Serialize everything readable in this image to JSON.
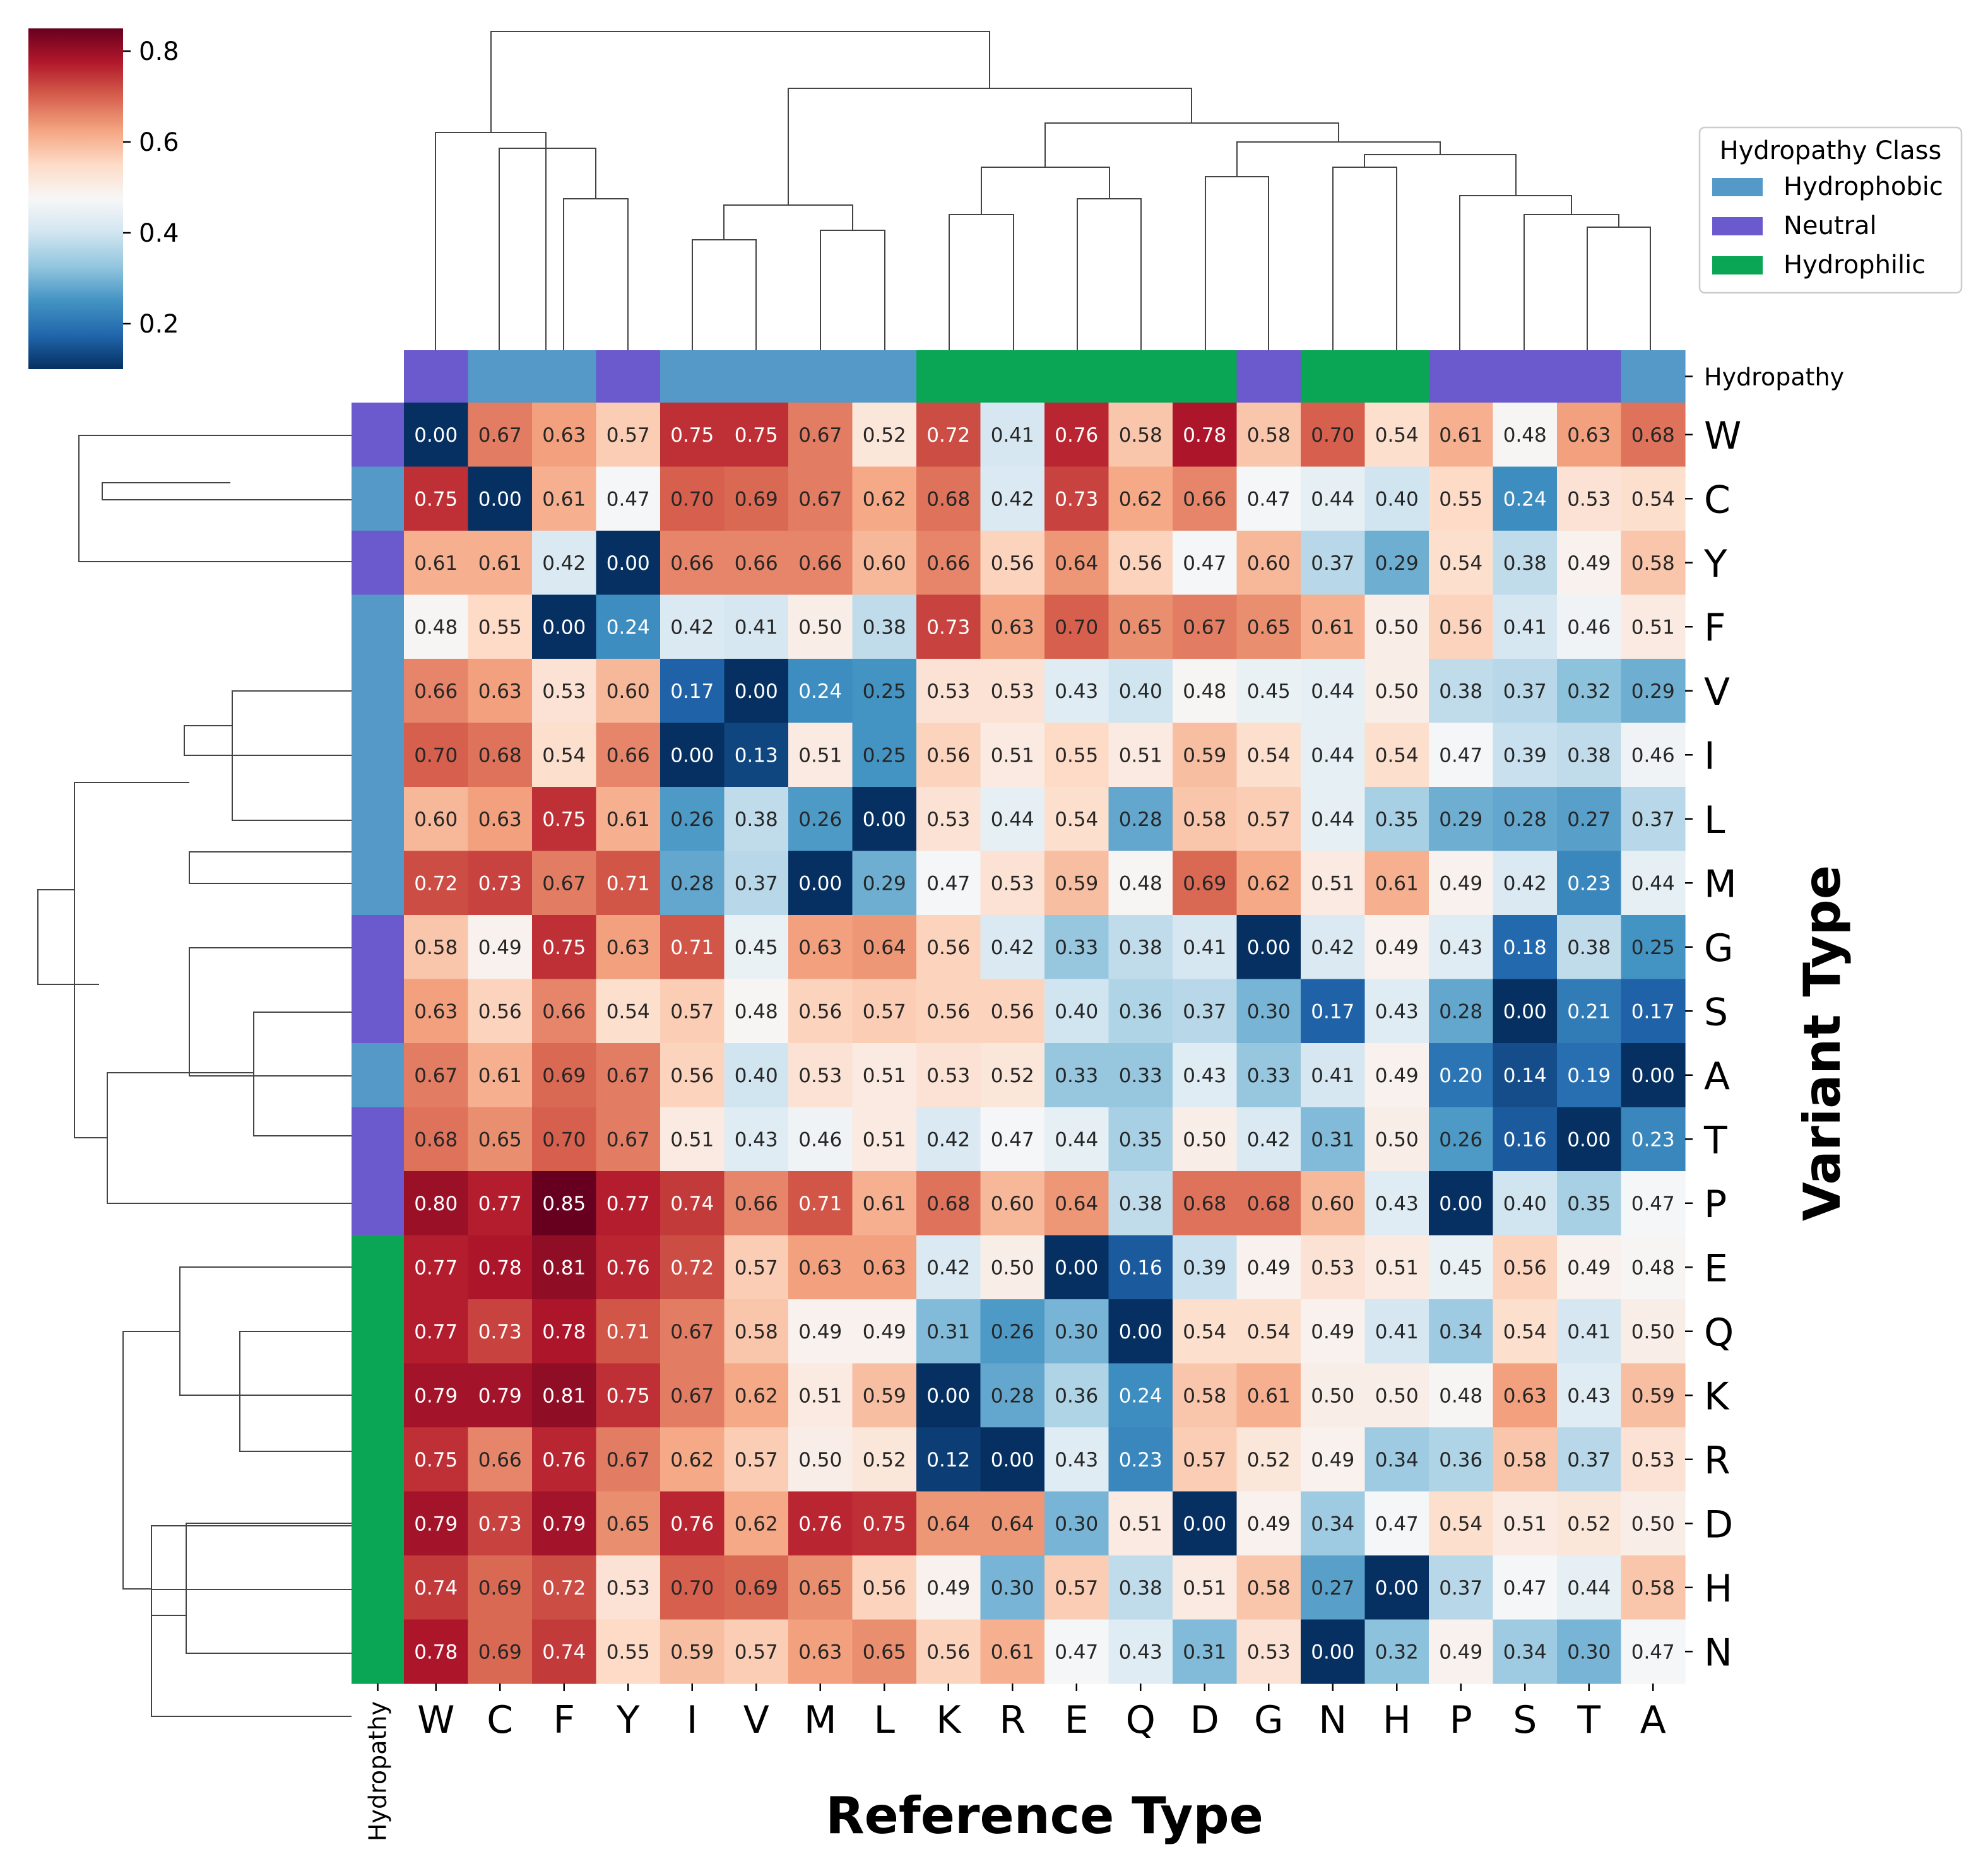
{
  "chart_data": {
    "type": "heatmap",
    "title": "",
    "xlabel": "Reference Type",
    "ylabel": "Variant Type",
    "columns": [
      "W",
      "C",
      "F",
      "Y",
      "I",
      "V",
      "M",
      "L",
      "K",
      "R",
      "E",
      "Q",
      "D",
      "G",
      "N",
      "H",
      "P",
      "S",
      "T",
      "A"
    ],
    "rows": [
      "W",
      "C",
      "Y",
      "F",
      "V",
      "I",
      "L",
      "M",
      "G",
      "S",
      "A",
      "T",
      "P",
      "E",
      "Q",
      "K",
      "R",
      "D",
      "H",
      "N"
    ],
    "values": [
      [
        0.0,
        0.67,
        0.63,
        0.57,
        0.75,
        0.75,
        0.67,
        0.52,
        0.72,
        0.41,
        0.76,
        0.58,
        0.78,
        0.58,
        0.7,
        0.54,
        0.61,
        0.48,
        0.63,
        0.68
      ],
      [
        0.75,
        0.0,
        0.61,
        0.47,
        0.7,
        0.69,
        0.67,
        0.62,
        0.68,
        0.42,
        0.73,
        0.62,
        0.66,
        0.47,
        0.44,
        0.4,
        0.55,
        0.24,
        0.53,
        0.54
      ],
      [
        0.61,
        0.61,
        0.42,
        0.0,
        0.66,
        0.66,
        0.66,
        0.6,
        0.66,
        0.56,
        0.64,
        0.56,
        0.47,
        0.6,
        0.37,
        0.29,
        0.54,
        0.38,
        0.49,
        0.58
      ],
      [
        0.48,
        0.55,
        0.0,
        0.24,
        0.42,
        0.41,
        0.5,
        0.38,
        0.73,
        0.63,
        0.7,
        0.65,
        0.67,
        0.65,
        0.61,
        0.5,
        0.56,
        0.41,
        0.46,
        0.51
      ],
      [
        0.66,
        0.63,
        0.53,
        0.6,
        0.17,
        0.0,
        0.24,
        0.25,
        0.53,
        0.53,
        0.43,
        0.4,
        0.48,
        0.45,
        0.44,
        0.5,
        0.38,
        0.37,
        0.32,
        0.29
      ],
      [
        0.7,
        0.68,
        0.54,
        0.66,
        0.0,
        0.13,
        0.51,
        0.25,
        0.56,
        0.51,
        0.55,
        0.51,
        0.59,
        0.54,
        0.44,
        0.54,
        0.47,
        0.39,
        0.38,
        0.46
      ],
      [
        0.6,
        0.63,
        0.75,
        0.61,
        0.26,
        0.38,
        0.26,
        0.0,
        0.53,
        0.44,
        0.54,
        0.28,
        0.58,
        0.57,
        0.44,
        0.35,
        0.29,
        0.28,
        0.27,
        0.37
      ],
      [
        0.72,
        0.73,
        0.67,
        0.71,
        0.28,
        0.37,
        0.0,
        0.29,
        0.47,
        0.53,
        0.59,
        0.48,
        0.69,
        0.62,
        0.51,
        0.61,
        0.49,
        0.42,
        0.23,
        0.44
      ],
      [
        0.58,
        0.49,
        0.75,
        0.63,
        0.71,
        0.45,
        0.63,
        0.64,
        0.56,
        0.42,
        0.33,
        0.38,
        0.41,
        0.0,
        0.42,
        0.49,
        0.43,
        0.18,
        0.38,
        0.25
      ],
      [
        0.63,
        0.56,
        0.66,
        0.54,
        0.57,
        0.48,
        0.56,
        0.57,
        0.56,
        0.56,
        0.4,
        0.36,
        0.37,
        0.3,
        0.17,
        0.43,
        0.28,
        0.0,
        0.21,
        0.17
      ],
      [
        0.67,
        0.61,
        0.69,
        0.67,
        0.56,
        0.4,
        0.53,
        0.51,
        0.53,
        0.52,
        0.33,
        0.33,
        0.43,
        0.33,
        0.41,
        0.49,
        0.2,
        0.14,
        0.19,
        0.0
      ],
      [
        0.68,
        0.65,
        0.7,
        0.67,
        0.51,
        0.43,
        0.46,
        0.51,
        0.42,
        0.47,
        0.44,
        0.35,
        0.5,
        0.42,
        0.31,
        0.5,
        0.26,
        0.16,
        0.0,
        0.23
      ],
      [
        0.8,
        0.77,
        0.85,
        0.77,
        0.74,
        0.66,
        0.71,
        0.61,
        0.68,
        0.6,
        0.64,
        0.38,
        0.68,
        0.68,
        0.6,
        0.43,
        0.0,
        0.4,
        0.35,
        0.47
      ],
      [
        0.77,
        0.78,
        0.81,
        0.76,
        0.72,
        0.57,
        0.63,
        0.63,
        0.42,
        0.5,
        0.0,
        0.16,
        0.39,
        0.49,
        0.53,
        0.51,
        0.45,
        0.56,
        0.49,
        0.48
      ],
      [
        0.77,
        0.73,
        0.78,
        0.71,
        0.67,
        0.58,
        0.49,
        0.49,
        0.31,
        0.26,
        0.3,
        0.0,
        0.54,
        0.54,
        0.49,
        0.41,
        0.34,
        0.54,
        0.41,
        0.5
      ],
      [
        0.79,
        0.79,
        0.81,
        0.75,
        0.67,
        0.62,
        0.51,
        0.59,
        0.0,
        0.28,
        0.36,
        0.24,
        0.58,
        0.61,
        0.5,
        0.5,
        0.48,
        0.63,
        0.43,
        0.59
      ],
      [
        0.75,
        0.66,
        0.76,
        0.67,
        0.62,
        0.57,
        0.5,
        0.52,
        0.12,
        0.0,
        0.43,
        0.23,
        0.57,
        0.52,
        0.49,
        0.34,
        0.36,
        0.58,
        0.37,
        0.53
      ],
      [
        0.79,
        0.73,
        0.79,
        0.65,
        0.76,
        0.62,
        0.76,
        0.75,
        0.64,
        0.64,
        0.3,
        0.51,
        0.0,
        0.49,
        0.34,
        0.47,
        0.54,
        0.51,
        0.52,
        0.5
      ],
      [
        0.74,
        0.69,
        0.72,
        0.53,
        0.7,
        0.69,
        0.65,
        0.56,
        0.49,
        0.3,
        0.57,
        0.38,
        0.51,
        0.58,
        0.27,
        0.0,
        0.37,
        0.47,
        0.44,
        0.58
      ],
      [
        0.78,
        0.69,
        0.74,
        0.55,
        0.59,
        0.57,
        0.63,
        0.65,
        0.56,
        0.61,
        0.47,
        0.43,
        0.31,
        0.53,
        0.0,
        0.32,
        0.49,
        0.34,
        0.3,
        0.47
      ]
    ],
    "colormap": "RdBu_r",
    "vmin": 0.1,
    "vmax": 0.85,
    "colorbar_ticks": [
      "0.2",
      "0.4",
      "0.6",
      "0.8"
    ],
    "colorbar_tick_values": [
      0.2,
      0.4,
      0.6,
      0.8
    ],
    "col_classes": [
      "Neutral",
      "Hydrophobic",
      "Hydrophobic",
      "Neutral",
      "Hydrophobic",
      "Hydrophobic",
      "Hydrophobic",
      "Hydrophobic",
      "Hydrophilic",
      "Hydrophilic",
      "Hydrophilic",
      "Hydrophilic",
      "Hydrophilic",
      "Neutral",
      "Hydrophilic",
      "Hydrophilic",
      "Neutral",
      "Neutral",
      "Neutral",
      "Hydrophobic"
    ],
    "row_classes": [
      "Neutral",
      "Hydrophobic",
      "Neutral",
      "Hydrophobic",
      "Hydrophobic",
      "Hydrophobic",
      "Hydrophobic",
      "Hydrophobic",
      "Neutral",
      "Neutral",
      "Hydrophobic",
      "Neutral",
      "Neutral",
      "Hydrophilic",
      "Hydrophilic",
      "Hydrophilic",
      "Hydrophilic",
      "Hydrophilic",
      "Hydrophilic",
      "Hydrophilic"
    ],
    "class_colors": {
      "Hydrophobic": "#5499c7",
      "Neutral": "#6a5acd",
      "Hydrophilic": "#0aa656"
    },
    "annotation_label": "Hydropathy",
    "legend": {
      "title": "Hydropathy Class",
      "entries": [
        "Hydrophobic",
        "Neutral",
        "Hydrophilic"
      ],
      "placement": "top-right"
    },
    "dendrogram": "hierarchical clustering on rows and columns"
  }
}
